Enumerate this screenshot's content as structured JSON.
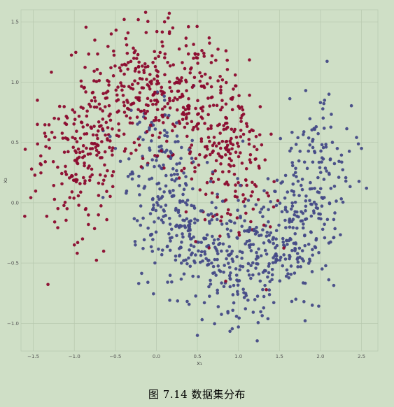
{
  "caption": "图 7.14 数据集分布",
  "chart_data": {
    "type": "scatter",
    "title": "",
    "xlabel": "x₁",
    "ylabel": "x₂",
    "xlim": [
      -1.65,
      2.7
    ],
    "ylim": [
      -1.23,
      1.6
    ],
    "xticks": [
      -1.5,
      -1.0,
      -0.5,
      0.0,
      0.5,
      1.0,
      1.5,
      2.0,
      2.5
    ],
    "xtick_labels": [
      "−1.5",
      "−1.0",
      "−0.5",
      "0.0",
      "0.5",
      "1.0",
      "1.5",
      "2.0",
      "2.5"
    ],
    "yticks": [
      -1.0,
      -0.5,
      0.0,
      0.5,
      1.0,
      1.5
    ],
    "ytick_labels": [
      "−1.0",
      "−0.5",
      "0.0",
      "0.5",
      "1.0",
      "1.5"
    ],
    "grid": true,
    "legend": "none",
    "background_color": "#cfdfc6",
    "description": "two interleaving half-moons, ~750 points each",
    "series": [
      {
        "color": "#8b0a2e",
        "count": 750,
        "shape": "upper moon",
        "center": [
          0.0,
          0.0
        ],
        "radius": 1.0,
        "theta_range": [
          0,
          180
        ],
        "noise_sd": 0.25,
        "sample_points": [
          [
            -1.45,
            0.85
          ],
          [
            -1.45,
            0.65
          ],
          [
            -1.35,
            0.55
          ],
          [
            -0.55,
            1.4
          ],
          [
            0.1,
            1.5
          ],
          [
            0.2,
            1.45
          ],
          [
            0.5,
            1.2
          ],
          [
            1.0,
            0.8
          ],
          [
            1.2,
            0.15
          ],
          [
            -1.0,
            -0.35
          ],
          [
            -0.9,
            -0.3
          ]
        ]
      },
      {
        "color": "#454a87",
        "count": 750,
        "shape": "lower moon",
        "center": [
          1.0,
          0.5
        ],
        "radius": 1.0,
        "theta_range": [
          180,
          360
        ],
        "noise_sd": 0.25,
        "sample_points": [
          [
            0.5,
            -1.1
          ],
          [
            1.0,
            -1.03
          ],
          [
            1.7,
            -0.8
          ],
          [
            1.9,
            -0.85
          ],
          [
            2.0,
            0.83
          ],
          [
            2.05,
            0.85
          ],
          [
            2.5,
            0.45
          ],
          [
            0.1,
            0.6
          ],
          [
            -0.5,
            0.45
          ],
          [
            0.1,
            0.85
          ]
        ]
      }
    ]
  }
}
